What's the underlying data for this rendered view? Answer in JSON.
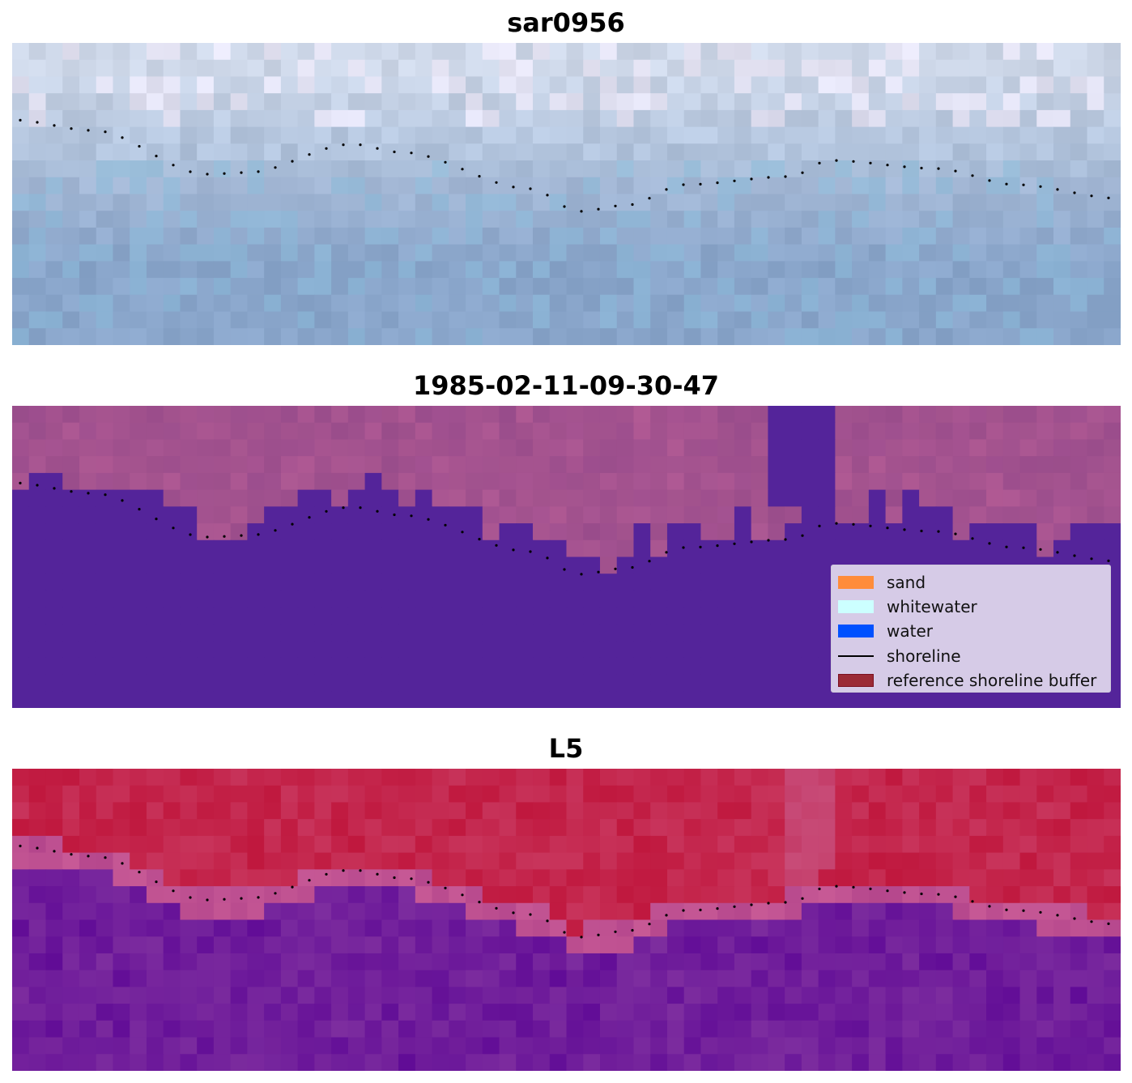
{
  "panels": [
    {
      "title": "sar0956",
      "colormap": "sar"
    },
    {
      "title": "1985-02-11-09-30-47",
      "colormap": "class"
    },
    {
      "title": "L5",
      "colormap": "ndwi"
    }
  ],
  "legend": {
    "items": [
      {
        "label": "sand",
        "kind": "patch",
        "color": "#ff8c3a",
        "edge": "#ff8c3a"
      },
      {
        "label": "whitewater",
        "kind": "patch",
        "color": "#ccffff",
        "edge": "#ccffff"
      },
      {
        "label": "water",
        "kind": "patch",
        "color": "#0051ff",
        "edge": "#0051ff"
      },
      {
        "label": "shoreline",
        "kind": "line",
        "color": "#000000"
      },
      {
        "label": "reference shoreline buffer",
        "kind": "patch",
        "color": "#9b2a35",
        "edge": "#7a1020"
      }
    ]
  },
  "colors": {
    "class_water": "#54249a",
    "class_land": "#a05090",
    "ndwi_land": "#c02048",
    "ndwi_water": "#7a2a9c"
  }
}
